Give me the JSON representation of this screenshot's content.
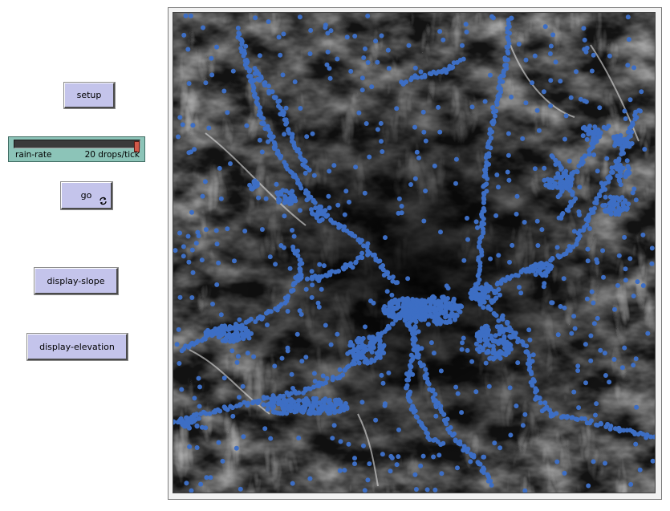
{
  "buttons": {
    "setup": "setup",
    "go": "go",
    "display_slope": "display-slope",
    "display_elevation": "display-elevation"
  },
  "slider": {
    "label": "rain-rate",
    "value_text": "20 drops/tick",
    "fraction": 1.0
  },
  "colors": {
    "button_bg": "#c4c4eb",
    "slider_bg": "#8cc4b8",
    "drop_color": "#3d6ec4",
    "terrain_dark": "#111111",
    "terrain_light": "#bdbdbd"
  },
  "view": {
    "icon": "terrain-view"
  }
}
